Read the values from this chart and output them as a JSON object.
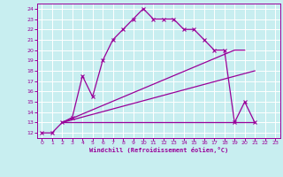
{
  "xlabel": "Windchill (Refroidissement éolien,°C)",
  "xlim": [
    -0.5,
    23.5
  ],
  "ylim": [
    11.5,
    24.5
  ],
  "xticks": [
    0,
    1,
    2,
    3,
    4,
    5,
    6,
    7,
    8,
    9,
    10,
    11,
    12,
    13,
    14,
    15,
    16,
    17,
    18,
    19,
    20,
    21,
    22,
    23
  ],
  "yticks": [
    12,
    13,
    14,
    15,
    16,
    17,
    18,
    19,
    20,
    21,
    22,
    23,
    24
  ],
  "bg_color": "#c8eef0",
  "line_color": "#990099",
  "grid_color": "#ffffff",
  "line1": {
    "x": [
      0,
      1,
      2,
      3,
      4,
      5,
      6,
      7,
      8,
      9,
      10,
      11,
      12,
      13,
      14,
      15,
      16,
      17,
      18,
      19,
      20,
      21
    ],
    "y": [
      12,
      12,
      13,
      13.5,
      17.5,
      15.5,
      19,
      21,
      22,
      23,
      24,
      23,
      23,
      23,
      22,
      22,
      21,
      20,
      20,
      13,
      15,
      13
    ]
  },
  "line_flat": {
    "x": [
      2,
      19,
      21
    ],
    "y": [
      13,
      13,
      13
    ]
  },
  "line_low": {
    "x": [
      2,
      21
    ],
    "y": [
      13,
      18
    ]
  },
  "line_high": {
    "x": [
      2,
      19,
      20
    ],
    "y": [
      13,
      20,
      20
    ]
  }
}
